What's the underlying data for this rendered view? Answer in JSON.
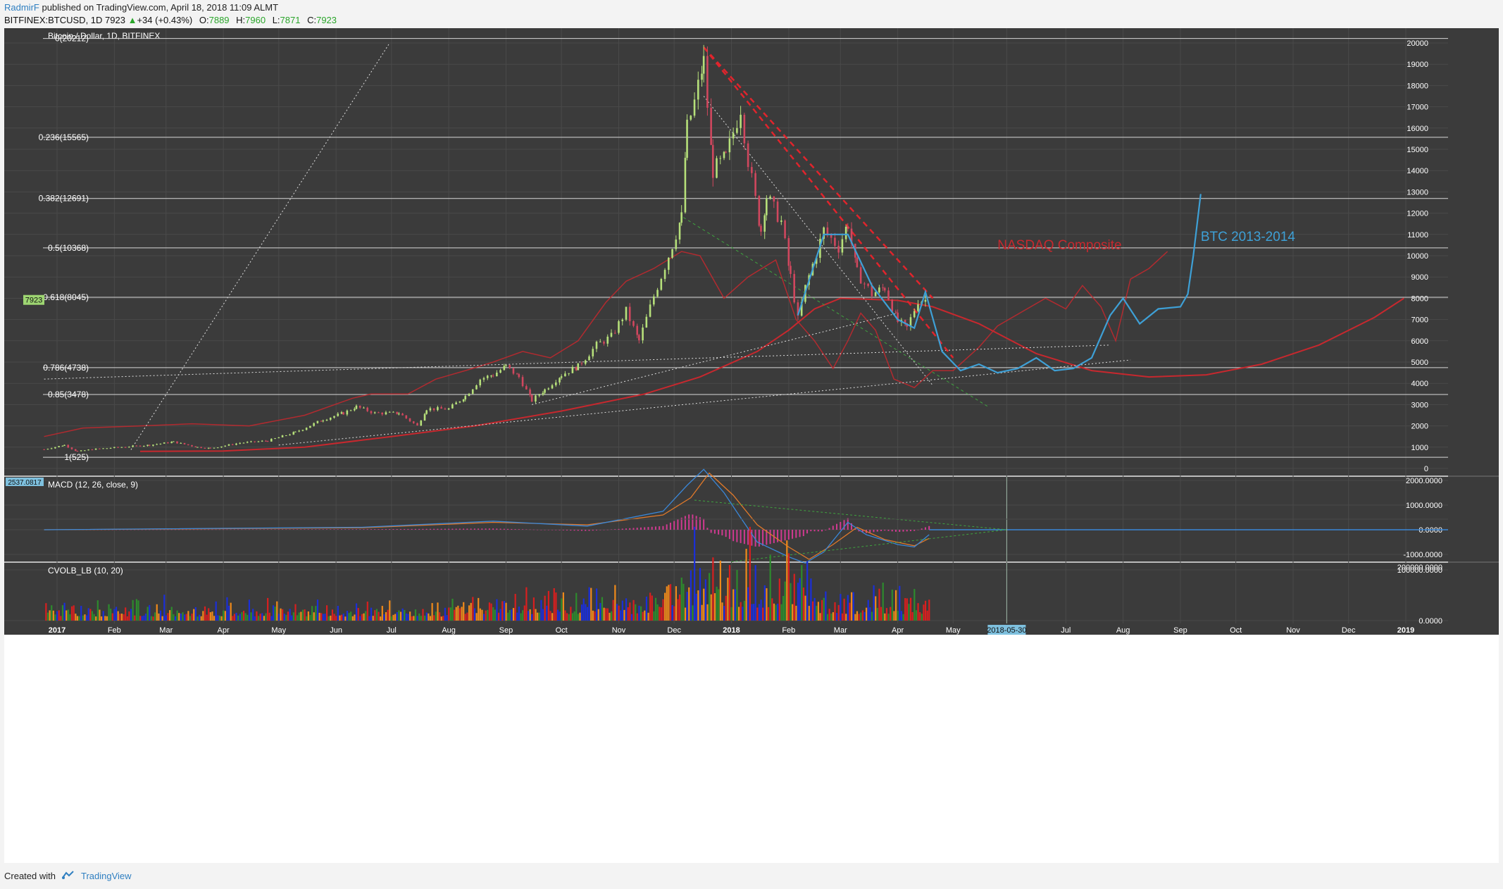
{
  "header": {
    "author": "RadmirF",
    "published_text": "published on TradingView.com, April 18, 2018 11:09 ALMT",
    "symbol": "BITFINEX:BTCUSD, 1D",
    "last": "7923",
    "change": "+34 (+0.43%)",
    "o_label": "O:",
    "o": "7889",
    "h_label": "H:",
    "h": "7960",
    "l_label": "L:",
    "l": "7871",
    "c_label": "C:",
    "c": "7923"
  },
  "footer": {
    "created_with": "Created with",
    "brand": "TradingView"
  },
  "colors": {
    "background": "#3b3b3b",
    "grid": "#4a4a4a",
    "axis_text": "#ffffff",
    "up": "#b6e07a",
    "down": "#d0475e",
    "red_line": "#c7282e",
    "blue_fractal": "#3ea0d6",
    "macd_line": "#3a87d8",
    "signal_line": "#e0792a",
    "macd_hist": "#d03a91",
    "vol_red": "#d81f1f",
    "vol_green": "#2d8a2d",
    "vol_blue": "#1b2fd8",
    "vol_orange": "#f08a1a"
  },
  "chart_data": [
    {
      "type": "candlestick",
      "title": "Bitcoin / Dollar, 1D, BITFINEX",
      "ylim": [
        0,
        21000
      ],
      "y_ticks": [
        0,
        1000,
        2000,
        3000,
        4000,
        5000,
        6000,
        7000,
        8000,
        9000,
        10000,
        11000,
        12000,
        13000,
        14000,
        15000,
        16000,
        17000,
        18000,
        19000,
        20000
      ],
      "x_ticks": [
        "2017",
        "Feb",
        "Mar",
        "Apr",
        "May",
        "Jun",
        "Jul",
        "Aug",
        "Sep",
        "Oct",
        "Nov",
        "Dec",
        "2018",
        "Feb",
        "Mar",
        "Apr",
        "May",
        "2018-05-30",
        "Jul",
        "Aug",
        "Sep",
        "Oct",
        "Nov",
        "Dec",
        "2019"
      ],
      "x_tick_dates": [
        "2017-01-01",
        "2017-02-01",
        "2017-03-01",
        "2017-04-01",
        "2017-05-01",
        "2017-06-01",
        "2017-07-01",
        "2017-08-01",
        "2017-09-01",
        "2017-10-01",
        "2017-11-01",
        "2017-12-01",
        "2018-01-01",
        "2018-02-01",
        "2018-03-01",
        "2018-04-01",
        "2018-05-01",
        "2018-05-30",
        "2018-07-01",
        "2018-08-01",
        "2018-09-01",
        "2018-10-01",
        "2018-11-01",
        "2018-12-01",
        "2019-01-01"
      ],
      "last_price_label": "7923",
      "btc_close_points": [
        [
          "2016-12-25",
          900
        ],
        [
          "2017-01-05",
          1100
        ],
        [
          "2017-01-12",
          800
        ],
        [
          "2017-01-20",
          900
        ],
        [
          "2017-02-01",
          980
        ],
        [
          "2017-02-20",
          1100
        ],
        [
          "2017-03-05",
          1250
        ],
        [
          "2017-03-18",
          1000
        ],
        [
          "2017-03-25",
          950
        ],
        [
          "2017-04-10",
          1200
        ],
        [
          "2017-04-25",
          1300
        ],
        [
          "2017-05-10",
          1700
        ],
        [
          "2017-05-25",
          2300
        ],
        [
          "2017-06-05",
          2600
        ],
        [
          "2017-06-12",
          2900
        ],
        [
          "2017-06-22",
          2600
        ],
        [
          "2017-07-05",
          2600
        ],
        [
          "2017-07-15",
          2000
        ],
        [
          "2017-07-20",
          2800
        ],
        [
          "2017-08-01",
          2800
        ],
        [
          "2017-08-10",
          3400
        ],
        [
          "2017-08-18",
          4200
        ],
        [
          "2017-08-25",
          4400
        ],
        [
          "2017-09-01",
          4800
        ],
        [
          "2017-09-08",
          4300
        ],
        [
          "2017-09-15",
          3200
        ],
        [
          "2017-09-22",
          3700
        ],
        [
          "2017-10-01",
          4400
        ],
        [
          "2017-10-10",
          4800
        ],
        [
          "2017-10-20",
          5800
        ],
        [
          "2017-10-28",
          6200
        ],
        [
          "2017-11-05",
          7400
        ],
        [
          "2017-11-12",
          6000
        ],
        [
          "2017-11-20",
          8100
        ],
        [
          "2017-11-28",
          10000
        ],
        [
          "2017-12-05",
          11800
        ],
        [
          "2017-12-08",
          16000
        ],
        [
          "2017-12-12",
          17200
        ],
        [
          "2017-12-17",
          19100
        ],
        [
          "2017-12-22",
          14000
        ],
        [
          "2017-12-29",
          14600
        ],
        [
          "2018-01-06",
          17000
        ],
        [
          "2018-01-10",
          14500
        ],
        [
          "2018-01-17",
          11200
        ],
        [
          "2018-01-20",
          12800
        ],
        [
          "2018-01-28",
          11600
        ],
        [
          "2018-02-02",
          9000
        ],
        [
          "2018-02-06",
          7000
        ],
        [
          "2018-02-10",
          8500
        ],
        [
          "2018-02-20",
          11200
        ],
        [
          "2018-02-28",
          10400
        ],
        [
          "2018-03-05",
          11500
        ],
        [
          "2018-03-10",
          9200
        ],
        [
          "2018-03-18",
          8200
        ],
        [
          "2018-03-25",
          8500
        ],
        [
          "2018-04-01",
          6900
        ],
        [
          "2018-04-06",
          6600
        ],
        [
          "2018-04-12",
          7900
        ],
        [
          "2018-04-18",
          7923
        ]
      ],
      "btc_2013_2014_fractal_points": [
        [
          "2018-02-06",
          7200
        ],
        [
          "2018-02-20",
          11000
        ],
        [
          "2018-03-05",
          11000
        ],
        [
          "2018-03-18",
          8600
        ],
        [
          "2018-04-01",
          7000
        ],
        [
          "2018-04-10",
          6600
        ],
        [
          "2018-04-16",
          8300
        ],
        [
          "2018-04-25",
          5500
        ],
        [
          "2018-05-05",
          4600
        ],
        [
          "2018-05-15",
          4900
        ],
        [
          "2018-05-25",
          4500
        ],
        [
          "2018-06-05",
          4700
        ],
        [
          "2018-06-15",
          5200
        ],
        [
          "2018-06-25",
          4600
        ],
        [
          "2018-07-05",
          4700
        ],
        [
          "2018-07-15",
          5200
        ],
        [
          "2018-07-25",
          7200
        ],
        [
          "2018-08-01",
          8000
        ],
        [
          "2018-08-10",
          6800
        ],
        [
          "2018-08-20",
          7500
        ],
        [
          "2018-09-01",
          7600
        ],
        [
          "2018-09-05",
          8200
        ],
        [
          "2018-09-08",
          10000
        ],
        [
          "2018-09-12",
          12900
        ]
      ],
      "nasdaq_composite_points": [
        [
          "2016-12-25",
          1500
        ],
        [
          "2017-01-15",
          1900
        ],
        [
          "2017-02-15",
          2000
        ],
        [
          "2017-03-15",
          2100
        ],
        [
          "2017-04-15",
          2000
        ],
        [
          "2017-05-15",
          2500
        ],
        [
          "2017-06-10",
          3300
        ],
        [
          "2017-06-20",
          3500
        ],
        [
          "2017-07-10",
          3500
        ],
        [
          "2017-07-25",
          4200
        ],
        [
          "2017-08-10",
          4600
        ],
        [
          "2017-08-25",
          5000
        ],
        [
          "2017-09-10",
          5500
        ],
        [
          "2017-09-25",
          5200
        ],
        [
          "2017-10-10",
          6000
        ],
        [
          "2017-10-25",
          7800
        ],
        [
          "2017-11-05",
          8800
        ],
        [
          "2017-11-20",
          9400
        ],
        [
          "2017-12-05",
          10200
        ],
        [
          "2017-12-15",
          10000
        ],
        [
          "2017-12-28",
          8000
        ],
        [
          "2018-01-10",
          9000
        ],
        [
          "2018-01-25",
          9800
        ],
        [
          "2018-02-05",
          7000
        ],
        [
          "2018-02-15",
          6000
        ],
        [
          "2018-02-25",
          4700
        ],
        [
          "2018-03-05",
          6000
        ],
        [
          "2018-03-12",
          7300
        ],
        [
          "2018-03-20",
          6500
        ],
        [
          "2018-03-30",
          4200
        ],
        [
          "2018-04-10",
          3800
        ],
        [
          "2018-04-20",
          4600
        ],
        [
          "2018-05-01",
          4600
        ],
        [
          "2018-05-15",
          5700
        ],
        [
          "2018-05-25",
          6700
        ],
        [
          "2018-06-10",
          7500
        ],
        [
          "2018-06-20",
          8000
        ],
        [
          "2018-07-01",
          7500
        ],
        [
          "2018-07-10",
          8600
        ],
        [
          "2018-07-20",
          7600
        ],
        [
          "2018-07-28",
          6000
        ],
        [
          "2018-08-05",
          8900
        ],
        [
          "2018-08-15",
          9400
        ],
        [
          "2018-08-25",
          10200
        ]
      ],
      "red_curve_points": [
        [
          "2017-02-15",
          800
        ],
        [
          "2017-04-01",
          820
        ],
        [
          "2017-05-15",
          1000
        ],
        [
          "2017-07-01",
          1500
        ],
        [
          "2017-08-15",
          2000
        ],
        [
          "2017-10-01",
          2700
        ],
        [
          "2017-11-15",
          3500
        ],
        [
          "2017-12-15",
          4300
        ],
        [
          "2018-01-15",
          5500
        ],
        [
          "2018-02-01",
          6500
        ],
        [
          "2018-02-15",
          7500
        ],
        [
          "2018-03-01",
          8000
        ],
        [
          "2018-04-01",
          7900
        ],
        [
          "2018-04-20",
          7600
        ],
        [
          "2018-05-15",
          6800
        ],
        [
          "2018-06-15",
          5400
        ],
        [
          "2018-07-15",
          4600
        ],
        [
          "2018-08-15",
          4300
        ],
        [
          "2018-09-15",
          4400
        ],
        [
          "2018-10-15",
          4900
        ],
        [
          "2018-11-15",
          5800
        ],
        [
          "2018-12-15",
          7100
        ],
        [
          "2018-12-31",
          8000
        ]
      ],
      "fibonacci": [
        {
          "label": "0(20212)",
          "price": 20212
        },
        {
          "label": "0.236(15565)",
          "price": 15565
        },
        {
          "label": "0.382(12691)",
          "price": 12691
        },
        {
          "label": "0.5(10368)",
          "price": 10368
        },
        {
          "label": "0.618(8045)",
          "price": 8045
        },
        {
          "label": "0.786(4738)",
          "price": 4738
        },
        {
          "label": "0.85(3478)",
          "price": 3478
        },
        {
          "label": "1(525)",
          "price": 525
        }
      ],
      "annotations": [
        {
          "text": "NASDAQ Composite",
          "date": "2018-05-25",
          "price": 10300
        },
        {
          "text": "BTC 2013-2014",
          "date": "2018-09-12",
          "price": 10700
        }
      ],
      "trendlines": [
        {
          "style": "white-dotted",
          "from": [
            "2017-02-10",
            880
          ],
          "to": [
            "2017-06-30",
            20000
          ]
        },
        {
          "style": "white-dotted",
          "from": [
            "2017-09-15",
            3000
          ],
          "to": [
            "2018-04-01",
            7300
          ]
        },
        {
          "style": "white-dotted",
          "from": [
            "2016-12-25",
            4200
          ],
          "to": [
            "2018-07-25",
            5800
          ]
        },
        {
          "style": "white-dotted",
          "from": [
            "2017-05-01",
            1100
          ],
          "to": [
            "2018-08-05",
            5100
          ]
        },
        {
          "style": "white-dotted",
          "from": [
            "2017-12-17",
            17500
          ],
          "to": [
            "2018-04-20",
            3900
          ]
        },
        {
          "style": "red-dashed",
          "from": [
            "2017-12-17",
            19800
          ],
          "to": [
            "2018-05-01",
            5200
          ]
        },
        {
          "style": "red-dashed",
          "from": [
            "2017-12-17",
            19800
          ],
          "to": [
            "2018-04-20",
            8000
          ]
        },
        {
          "style": "green-dashed",
          "from": [
            "2017-12-06",
            11800
          ],
          "to": [
            "2018-05-20",
            2900
          ]
        }
      ]
    },
    {
      "type": "line",
      "title": "MACD (12, 26, close, 9)",
      "ylim": [
        -1500,
        2500
      ],
      "y_ticks": [
        "2000.0000",
        "1000.0000",
        "0.0000",
        "-1000.0000"
      ],
      "current_label": "2537.0817",
      "series": [
        {
          "name": "",
          "values_points": [
            [
              "2016-12-25",
              0
            ],
            [
              "2017-06-15",
              100
            ],
            [
              "2017-08-25",
              350
            ],
            [
              "2017-10-15",
              150
            ],
            [
              "2017-11-25",
              750
            ],
            [
              "2017-12-08",
              1800
            ],
            [
              "2017-12-17",
              2450
            ],
            [
              "2017-12-28",
              1500
            ],
            [
              "2018-01-05",
              600
            ],
            [
              "2018-01-15",
              -500
            ],
            [
              "2018-02-01",
              -1100
            ],
            [
              "2018-02-10",
              -1350
            ],
            [
              "2018-02-20",
              -900
            ],
            [
              "2018-03-05",
              300
            ],
            [
              "2018-03-15",
              -200
            ],
            [
              "2018-04-01",
              -600
            ],
            [
              "2018-04-10",
              -700
            ],
            [
              "2018-04-18",
              -200
            ]
          ]
        },
        {
          "name": "",
          "values_points": [
            [
              "2016-12-25",
              0
            ],
            [
              "2017-06-15",
              80
            ],
            [
              "2017-08-25",
              300
            ],
            [
              "2017-10-15",
              200
            ],
            [
              "2017-11-25",
              600
            ],
            [
              "2017-12-10",
              1300
            ],
            [
              "2017-12-20",
              2300
            ],
            [
              "2018-01-02",
              1400
            ],
            [
              "2018-01-15",
              200
            ],
            [
              "2018-02-01",
              -700
            ],
            [
              "2018-02-12",
              -1200
            ],
            [
              "2018-02-25",
              -600
            ],
            [
              "2018-03-10",
              100
            ],
            [
              "2018-03-25",
              -400
            ],
            [
              "2018-04-10",
              -650
            ],
            [
              "2018-04-18",
              -350
            ]
          ]
        }
      ]
    },
    {
      "type": "bar",
      "title": "CVOLB_LB (10, 20)",
      "ylim": [
        0,
        200000
      ],
      "y_ticks": [
        "200000.0000",
        "100000.0000",
        "0.0000"
      ]
    }
  ]
}
